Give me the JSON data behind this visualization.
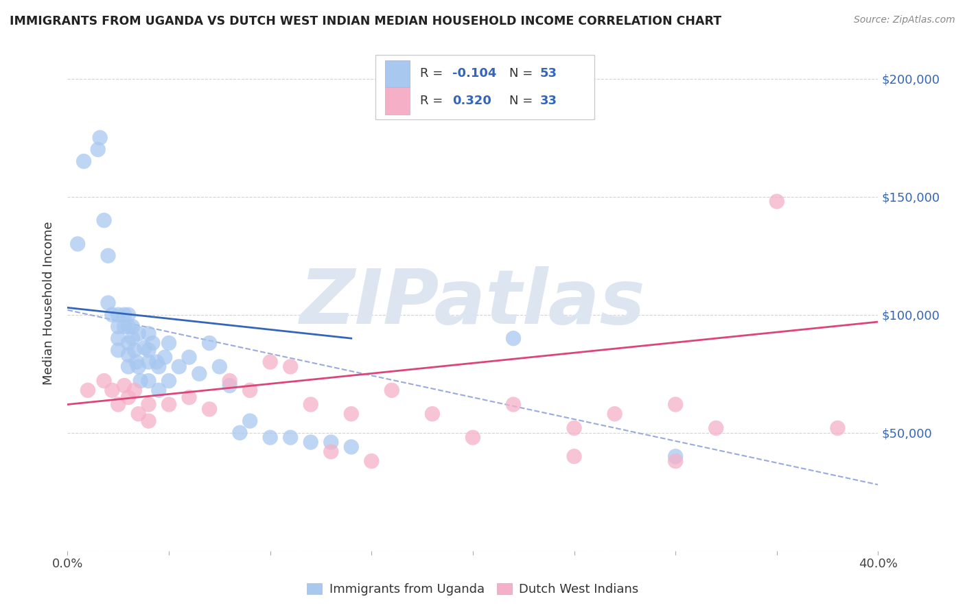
{
  "title": "IMMIGRANTS FROM UGANDA VS DUTCH WEST INDIAN MEDIAN HOUSEHOLD INCOME CORRELATION CHART",
  "source": "Source: ZipAtlas.com",
  "ylabel": "Median Household Income",
  "xlim": [
    0.0,
    0.4
  ],
  "ylim": [
    0,
    210000
  ],
  "xticks": [
    0.0,
    0.05,
    0.1,
    0.15,
    0.2,
    0.25,
    0.3,
    0.35,
    0.4
  ],
  "ytick_values": [
    0,
    50000,
    100000,
    150000,
    200000
  ],
  "ytick_labels": [
    "",
    "$50,000",
    "$100,000",
    "$150,000",
    "$200,000"
  ],
  "r_uganda": -0.104,
  "n_uganda": 53,
  "r_dutch": 0.32,
  "n_dutch": 33,
  "uganda_color": "#a8c8f0",
  "dutch_color": "#f5b0c8",
  "uganda_line_color": "#3366bb",
  "dutch_line_color": "#dd4477",
  "dashed_line_color": "#99aadd",
  "watermark_text": "ZIPatlas",
  "watermark_color": "#dde6f0",
  "legend_label_uganda": "Immigrants from Uganda",
  "legend_label_dutch": "Dutch West Indians",
  "uganda_scatter_x": [
    0.005,
    0.008,
    0.015,
    0.016,
    0.018,
    0.02,
    0.02,
    0.022,
    0.025,
    0.025,
    0.025,
    0.025,
    0.028,
    0.028,
    0.03,
    0.03,
    0.03,
    0.03,
    0.03,
    0.032,
    0.032,
    0.033,
    0.034,
    0.035,
    0.035,
    0.036,
    0.038,
    0.04,
    0.04,
    0.04,
    0.04,
    0.042,
    0.044,
    0.045,
    0.045,
    0.048,
    0.05,
    0.05,
    0.055,
    0.06,
    0.065,
    0.07,
    0.075,
    0.08,
    0.085,
    0.09,
    0.1,
    0.11,
    0.12,
    0.13,
    0.14,
    0.22,
    0.3
  ],
  "uganda_scatter_y": [
    130000,
    165000,
    170000,
    175000,
    140000,
    125000,
    105000,
    100000,
    100000,
    95000,
    90000,
    85000,
    100000,
    95000,
    100000,
    95000,
    88000,
    83000,
    78000,
    95000,
    90000,
    85000,
    80000,
    92000,
    78000,
    72000,
    86000,
    92000,
    85000,
    80000,
    72000,
    88000,
    80000,
    78000,
    68000,
    82000,
    88000,
    72000,
    78000,
    82000,
    75000,
    88000,
    78000,
    70000,
    50000,
    55000,
    48000,
    48000,
    46000,
    46000,
    44000,
    90000,
    40000
  ],
  "dutch_scatter_x": [
    0.01,
    0.018,
    0.022,
    0.025,
    0.028,
    0.03,
    0.033,
    0.035,
    0.04,
    0.04,
    0.05,
    0.06,
    0.07,
    0.08,
    0.09,
    0.1,
    0.11,
    0.12,
    0.13,
    0.14,
    0.15,
    0.16,
    0.18,
    0.2,
    0.22,
    0.25,
    0.27,
    0.3,
    0.32,
    0.35,
    0.38,
    0.25,
    0.3
  ],
  "dutch_scatter_y": [
    68000,
    72000,
    68000,
    62000,
    70000,
    65000,
    68000,
    58000,
    62000,
    55000,
    62000,
    65000,
    60000,
    72000,
    68000,
    80000,
    78000,
    62000,
    42000,
    58000,
    38000,
    68000,
    58000,
    48000,
    62000,
    52000,
    58000,
    62000,
    52000,
    148000,
    52000,
    40000,
    38000
  ],
  "uganda_trend": [
    0.0,
    0.14,
    103000,
    90000
  ],
  "dutch_trend": [
    0.0,
    0.4,
    62000,
    97000
  ],
  "dashed_trend": [
    0.0,
    0.4,
    102000,
    28000
  ]
}
